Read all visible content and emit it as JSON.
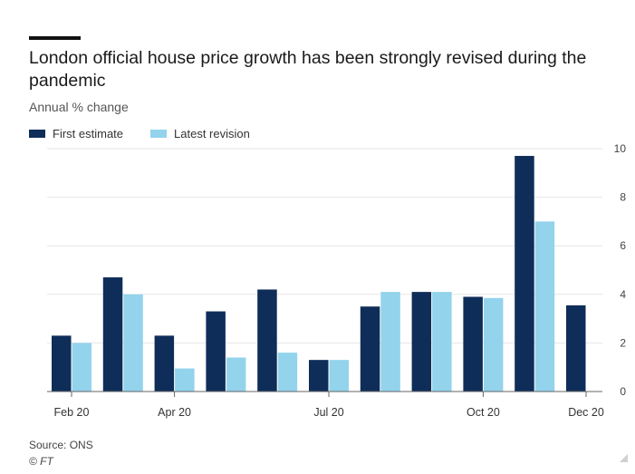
{
  "colors": {
    "first": "#0f2d59",
    "latest": "#93d3ec",
    "grid": "#e6e6e6",
    "axis": "#666666"
  },
  "chart_data": {
    "type": "bar",
    "title": "London official house price growth has been strongly revised during the pandemic",
    "subtitle": "Annual % change",
    "categories": [
      "Feb 20",
      "Mar 20",
      "Apr 20",
      "May 20",
      "Jun 20",
      "Jul 20",
      "Aug 20",
      "Sep 20",
      "Oct 20",
      "Nov 20",
      "Dec 20"
    ],
    "tick_labels": [
      {
        "index": 0,
        "label": "Feb 20"
      },
      {
        "index": 2,
        "label": "Apr 20"
      },
      {
        "index": 5,
        "label": "Jul 20"
      },
      {
        "index": 8,
        "label": "Oct 20"
      },
      {
        "index": 10,
        "label": "Dec 20"
      }
    ],
    "series": [
      {
        "name": "First estimate",
        "values": [
          2.3,
          4.7,
          2.3,
          3.3,
          4.2,
          1.3,
          3.5,
          4.1,
          3.9,
          9.7,
          3.55
        ]
      },
      {
        "name": "Latest revision",
        "values": [
          2.0,
          4.0,
          0.95,
          1.4,
          1.6,
          1.3,
          4.1,
          4.1,
          3.85,
          7.0,
          null
        ]
      }
    ],
    "ylim": [
      0,
      10
    ],
    "yticks": [
      0,
      2,
      4,
      6,
      8,
      10
    ],
    "y_axis_side": "right",
    "grid": true,
    "legend_position": "top-left"
  },
  "footer": {
    "source": "Source: ONS",
    "credit": "© FT"
  }
}
